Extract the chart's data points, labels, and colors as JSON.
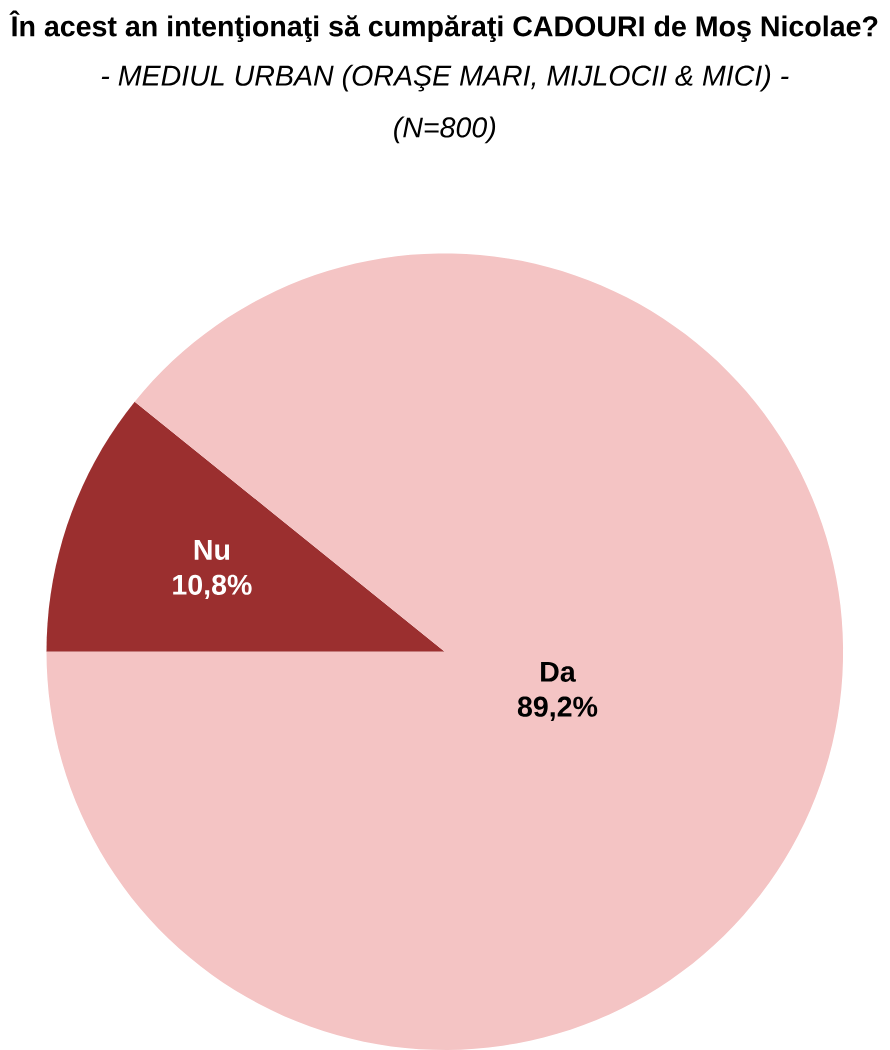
{
  "chart_data": {
    "type": "pie",
    "title": "În acest an intenţionaţi să cumpăraţi CADOURI de Moş Nicolae?",
    "subtitle": "- MEDIUL URBAN (ORAŞE MARI, MIJLOCII & MICI) -",
    "annotations": [
      "(N=800)"
    ],
    "categories": [
      "Nu",
      "Da"
    ],
    "values": [
      10.8,
      89.2
    ],
    "value_labels": [
      "10,8%",
      "89,2%"
    ],
    "colors": [
      "#9b2f2f",
      "#f4c4c4"
    ]
  }
}
